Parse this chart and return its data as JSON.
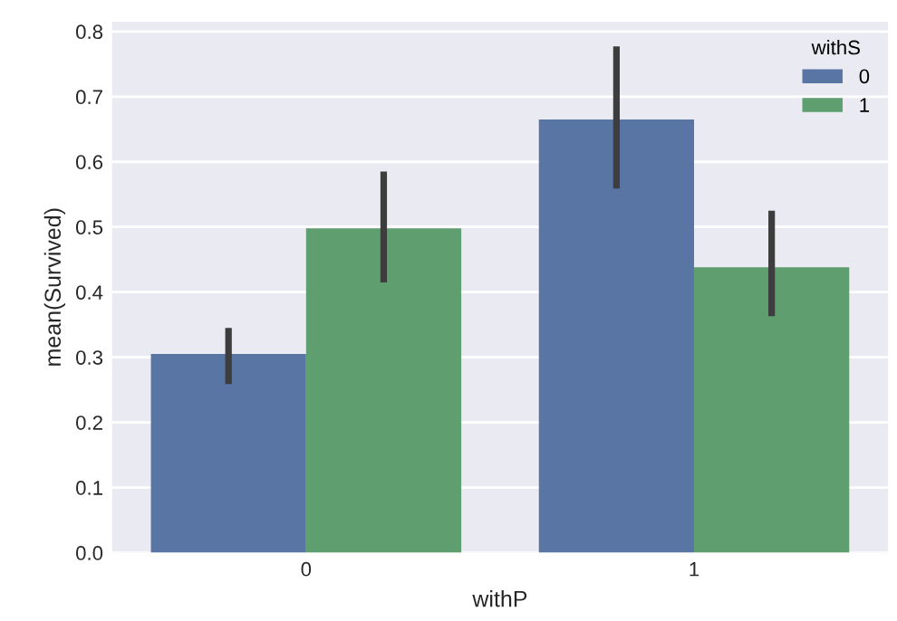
{
  "chart_data": {
    "type": "bar",
    "xlabel": "withP",
    "ylabel": "mean(Survived)",
    "legend_title": "withS",
    "categories": [
      "0",
      "1"
    ],
    "series": [
      {
        "name": "0",
        "color": "#5875a4",
        "values": [
          0.305,
          0.665
        ],
        "errors": [
          [
            0.259,
            0.345
          ],
          [
            0.559,
            0.777
          ]
        ]
      },
      {
        "name": "1",
        "color": "#5f9e6e",
        "values": [
          0.498,
          0.438
        ],
        "errors": [
          [
            0.415,
            0.585
          ],
          [
            0.363,
            0.525
          ]
        ]
      }
    ],
    "ylim": [
      0,
      0.815
    ],
    "yticks": [
      {
        "value": 0,
        "label": "0.0"
      },
      0.1,
      0.2,
      0.3,
      0.4,
      0.5,
      0.6,
      0.7,
      0.8
    ],
    "grid": "y",
    "legend": "top right"
  }
}
